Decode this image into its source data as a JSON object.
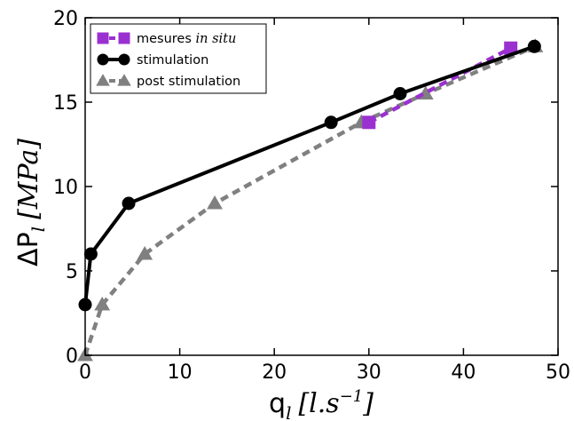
{
  "chart_data": {
    "type": "line",
    "title": "",
    "xlabel": {
      "main": "q",
      "sub": "l",
      "units": "[l.s",
      "units_sup": "−1",
      "units_end": "]"
    },
    "ylabel": {
      "main": "ΔP",
      "sub": "l",
      "units": "[MPa]"
    },
    "xlim": [
      0,
      50
    ],
    "ylim": [
      0,
      20
    ],
    "xticks": [
      "0",
      "10",
      "20",
      "30",
      "40",
      "50"
    ],
    "yticks": [
      "0",
      "5",
      "10",
      "15",
      "20"
    ],
    "grid": false,
    "legend_position": "top-left",
    "series": [
      {
        "name": "mesures in situ",
        "name_plain": "mesures",
        "name_italic": "in situ",
        "color": "#9b30d0",
        "line_style": "dashed",
        "marker": "square",
        "x": [
          30.0,
          45.0
        ],
        "y": [
          13.8,
          18.2
        ]
      },
      {
        "name": "stimulation",
        "color": "#000000",
        "line_style": "solid",
        "marker": "circle",
        "x": [
          0.0,
          0.6,
          4.6,
          26.0,
          33.3,
          47.5
        ],
        "y": [
          3.0,
          6.0,
          9.0,
          13.8,
          15.5,
          18.3
        ]
      },
      {
        "name": "post stimulation",
        "color": "#808080",
        "line_style": "dashed",
        "marker": "triangle",
        "x": [
          0.0,
          1.8,
          6.3,
          13.7,
          29.2,
          36.0,
          47.6
        ],
        "y": [
          0.0,
          3.0,
          6.0,
          9.0,
          13.8,
          15.5,
          18.3
        ]
      }
    ]
  }
}
